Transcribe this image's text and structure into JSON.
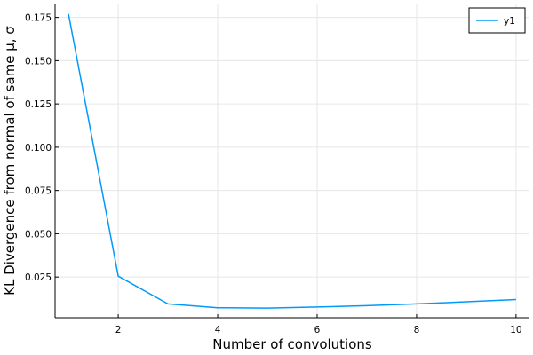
{
  "chart_data": {
    "type": "line",
    "xlabel": "Number of convolutions",
    "ylabel": "KL Divergence from normal of same μ, σ",
    "xlim": [
      0.73,
      10.27
    ],
    "ylim": [
      0.0015,
      0.1825
    ],
    "xticks": [
      2,
      4,
      6,
      8,
      10
    ],
    "yticks": [
      0.025,
      0.05,
      0.075,
      0.1,
      0.125,
      0.15,
      0.175
    ],
    "ytick_labels": [
      "0.025",
      "0.050",
      "0.075",
      "0.100",
      "0.125",
      "0.150",
      "0.175"
    ],
    "grid": true,
    "legend": {
      "position": "top-right"
    },
    "series": [
      {
        "name": "y1",
        "color": "#009af9",
        "x": [
          1,
          2,
          3,
          4,
          5,
          6,
          7,
          8,
          9,
          10
        ],
        "y": [
          0.177,
          0.0255,
          0.0095,
          0.0073,
          0.0071,
          0.0077,
          0.0085,
          0.0095,
          0.0107,
          0.012
        ]
      }
    ]
  }
}
